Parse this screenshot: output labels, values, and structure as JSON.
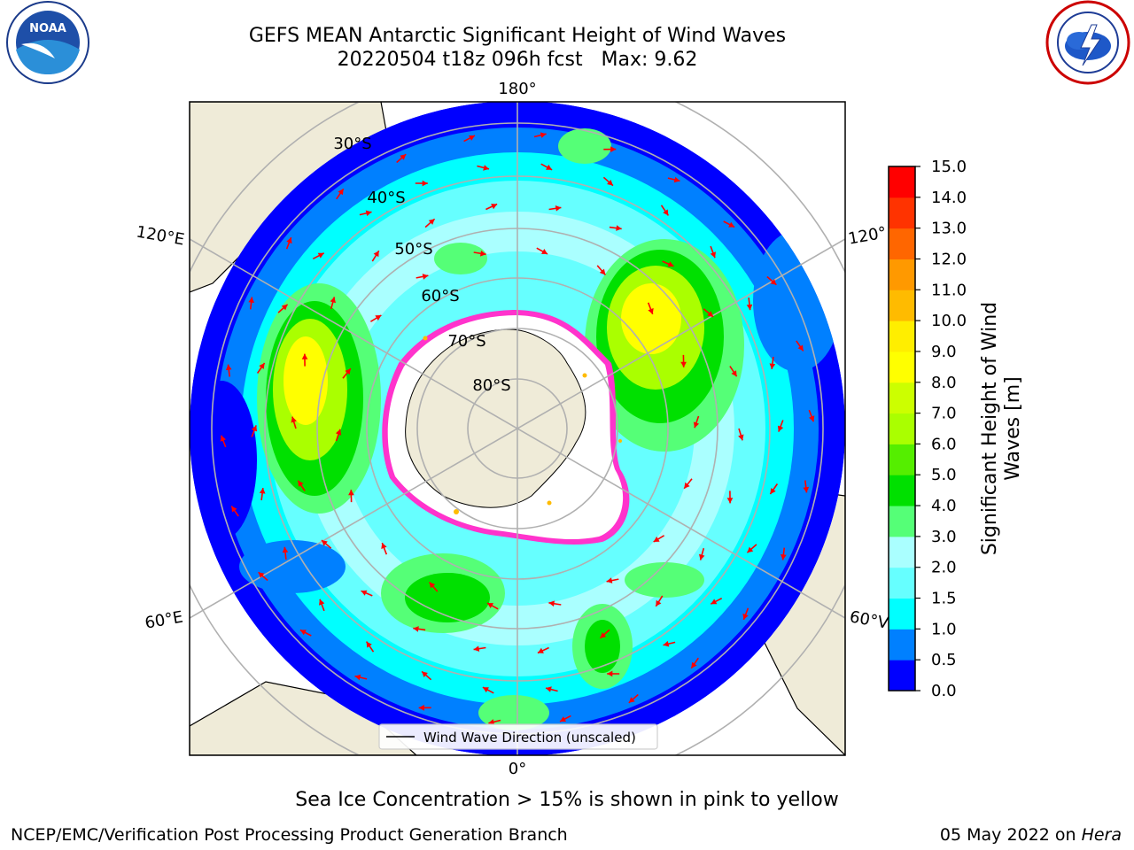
{
  "header": {
    "title_line1": "GEFS MEAN Antarctic Significant Height of Wind Waves",
    "title_line2": "20220504 t18z 096h fcst   Max: 9.62"
  },
  "logos": {
    "left": {
      "icon": "noaa-logo",
      "text": "NOAA"
    },
    "right": {
      "icon": "national-weather-service-logo"
    }
  },
  "map": {
    "longitude_labels": {
      "top": "180°",
      "upper_left": "120°E",
      "upper_right": "120°",
      "lower_left": "60°E",
      "lower_right": "60°V",
      "bottom": "0°"
    },
    "latitude_labels": [
      "30°S",
      "40°S",
      "50°S",
      "60°S",
      "70°S",
      "80°S"
    ],
    "legend": "Wind Wave Direction (unscaled)",
    "colors": {
      "land": "#efebd8",
      "ice_edge": "#ff33cc",
      "arrow": "#ff0000",
      "grid": "#b0b0b0"
    }
  },
  "colorbar": {
    "label_line1": "Significant Height of Wind",
    "label_line2": "Waves [m]",
    "ticks": [
      "0.0",
      "0.5",
      "1.0",
      "1.5",
      "2.0",
      "3.0",
      "4.0",
      "5.0",
      "6.0",
      "7.0",
      "8.0",
      "9.0",
      "10.0",
      "11.0",
      "12.0",
      "13.0",
      "14.0",
      "15.0"
    ],
    "colors": [
      "#0000ff",
      "#0080ff",
      "#00ffff",
      "#66ffff",
      "#aaffff",
      "#55ff77",
      "#00e000",
      "#55ee00",
      "#aaff00",
      "#ccff00",
      "#ffff00",
      "#ffee00",
      "#ffbb00",
      "#ff9900",
      "#ff6600",
      "#ff3300",
      "#ff0000"
    ]
  },
  "footer": {
    "note": "Sea Ice Concentration > 15% is shown in pink to yellow",
    "credit": "NCEP/EMC/Verification Post Processing Product Generation Branch",
    "date": "05 May 2022 on ",
    "machine": "Hera"
  }
}
